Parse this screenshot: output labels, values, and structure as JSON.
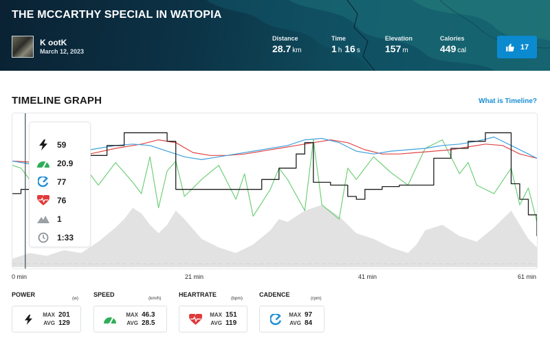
{
  "activity": {
    "title": "THE MCCARTHY SPECIAL IN WATOPIA",
    "rider_name": "K ootK",
    "date": "March 12, 2023",
    "stats": {
      "distance": {
        "label": "Distance",
        "value": "28.7",
        "unit": "km"
      },
      "time": {
        "label": "Time",
        "hours": "1",
        "hours_unit": "h",
        "minutes": "16",
        "minutes_unit": "s"
      },
      "elevation": {
        "label": "Elevation",
        "value": "157",
        "unit": "m"
      },
      "calories": {
        "label": "Calories",
        "value": "449",
        "unit": "cal"
      }
    },
    "likes": "17"
  },
  "timeline": {
    "title": "TIMELINE GRAPH",
    "help_link": "What is Timeline?",
    "cursor": {
      "power": "59",
      "speed": "20.9",
      "cadence": "77",
      "heartrate": "76",
      "elevation": "1",
      "elapsed": "1:33"
    },
    "x_ticks": [
      {
        "value": "0",
        "unit": "min"
      },
      {
        "value": "21",
        "unit": "min"
      },
      {
        "value": "41",
        "unit": "min"
      },
      {
        "value": "61",
        "unit": "min"
      }
    ]
  },
  "chart_data": {
    "type": "line",
    "xlabel": "",
    "ylabel": "",
    "x_range": [
      0,
      61
    ],
    "x_unit": "min",
    "grid": false,
    "series": [
      {
        "color": "#1c1c1c",
        "x": [
          0,
          1,
          3,
          5,
          7,
          9,
          11,
          13,
          15,
          17,
          18,
          19,
          20,
          21,
          23,
          25,
          27,
          29,
          31,
          33,
          34,
          35,
          37,
          39,
          40,
          41,
          43,
          45,
          47,
          49,
          51,
          53,
          55,
          57,
          58,
          59,
          60,
          61
        ],
        "y": [
          0.52,
          0.55,
          0.5,
          0.71,
          0.75,
          0.79,
          0.86,
          0.95,
          0.95,
          0.95,
          0.89,
          0.55,
          0.55,
          0.55,
          0.55,
          0.55,
          0.55,
          0.62,
          0.7,
          0.8,
          0.88,
          0.6,
          0.58,
          0.5,
          0.48,
          0.55,
          0.57,
          0.58,
          0.58,
          0.77,
          0.84,
          0.89,
          0.95,
          0.95,
          0.59,
          0.48,
          0.37,
          0.22
        ]
      },
      {
        "color": "#3fa0dc",
        "x": [
          0,
          2,
          4,
          6,
          8,
          10,
          12,
          14,
          16,
          18,
          20,
          22,
          24,
          26,
          28,
          30,
          32,
          34,
          36,
          38,
          40,
          42,
          44,
          46,
          48,
          50,
          52,
          54,
          56,
          58,
          60,
          61
        ],
        "y": [
          0.75,
          0.73,
          0.81,
          0.83,
          0.82,
          0.84,
          0.86,
          0.87,
          0.86,
          0.82,
          0.78,
          0.76,
          0.78,
          0.8,
          0.82,
          0.84,
          0.86,
          0.9,
          0.91,
          0.88,
          0.82,
          0.8,
          0.82,
          0.83,
          0.84,
          0.86,
          0.87,
          0.89,
          0.92,
          0.86,
          0.8,
          0.77
        ]
      },
      {
        "color": "#e04545",
        "x": [
          0,
          3,
          6,
          9,
          12,
          15,
          17,
          19,
          21,
          23,
          25,
          27,
          29,
          31,
          33,
          35,
          37,
          39,
          41,
          43,
          45,
          47,
          49,
          51,
          53,
          55,
          57,
          59,
          61
        ],
        "y": [
          0.75,
          0.74,
          0.76,
          0.8,
          0.84,
          0.87,
          0.9,
          0.88,
          0.81,
          0.79,
          0.79,
          0.8,
          0.82,
          0.84,
          0.86,
          0.88,
          0.9,
          0.88,
          0.83,
          0.8,
          0.8,
          0.81,
          0.82,
          0.83,
          0.85,
          0.87,
          0.86,
          0.8,
          0.77
        ]
      },
      {
        "color": "#6fcf78",
        "x": [
          0,
          1,
          2,
          4,
          6,
          8,
          9,
          10,
          12,
          14,
          15,
          16,
          17,
          18,
          19,
          20,
          22,
          24,
          26,
          27,
          28,
          30,
          31,
          32,
          34,
          35,
          36,
          38,
          39,
          40,
          42,
          44,
          46,
          48,
          50,
          52,
          53,
          54,
          56,
          58,
          59,
          60,
          61
        ],
        "y": [
          0.72,
          0.7,
          0.62,
          0.66,
          0.63,
          0.68,
          0.66,
          0.58,
          0.74,
          0.6,
          0.52,
          0.78,
          0.42,
          0.68,
          0.75,
          0.5,
          0.62,
          0.72,
          0.48,
          0.66,
          0.36,
          0.55,
          0.7,
          0.62,
          0.4,
          0.9,
          0.44,
          0.34,
          0.7,
          0.62,
          0.78,
          0.67,
          0.58,
          0.84,
          0.9,
          0.66,
          0.74,
          0.58,
          0.52,
          0.7,
          0.44,
          0.56,
          0.32
        ]
      },
      {
        "color": "#d8d8d8",
        "type": "area",
        "x": [
          0,
          2,
          4,
          6,
          8,
          10,
          12,
          13,
          14,
          15,
          16,
          17,
          18,
          19,
          20,
          22,
          24,
          26,
          28,
          30,
          31,
          32,
          34,
          36,
          38,
          39,
          40,
          42,
          44,
          46,
          47,
          48,
          50,
          52,
          54,
          56,
          57,
          58,
          59,
          60,
          61
        ],
        "y": [
          0.06,
          0.1,
          0.08,
          0.12,
          0.1,
          0.18,
          0.28,
          0.34,
          0.42,
          0.38,
          0.3,
          0.24,
          0.3,
          0.4,
          0.34,
          0.2,
          0.14,
          0.1,
          0.16,
          0.26,
          0.34,
          0.32,
          0.4,
          0.44,
          0.36,
          0.3,
          0.24,
          0.2,
          0.14,
          0.1,
          0.16,
          0.26,
          0.3,
          0.22,
          0.18,
          0.28,
          0.34,
          0.4,
          0.3,
          0.2,
          0.14
        ]
      }
    ],
    "cursor_x": 1.5
  },
  "cards": [
    {
      "label": "POWER",
      "unit": "(w)",
      "max_label": "MAX",
      "max": "201",
      "avg_label": "AVG",
      "avg": "129",
      "icon": "bolt-icon"
    },
    {
      "label": "SPEED",
      "unit": "(km/h)",
      "max_label": "MAX",
      "max": "46.3",
      "avg_label": "AVG",
      "avg": "28.5",
      "icon": "speedometer-icon"
    },
    {
      "label": "HEARTRATE",
      "unit": "(bpm)",
      "max_label": "MAX",
      "max": "151",
      "avg_label": "AVG",
      "avg": "119",
      "icon": "heart-icon"
    },
    {
      "label": "CADENCE",
      "unit": "(rpm)",
      "max_label": "MAX",
      "max": "97",
      "avg_label": "AVG",
      "avg": "84",
      "icon": "cadence-icon"
    }
  ],
  "colors": {
    "accent": "#0b8ad0",
    "link": "#1a8fd1",
    "power": "#1c1c1c",
    "speed": "#2fae5a",
    "cadence": "#1f8fd6",
    "heart": "#e03a3a"
  }
}
